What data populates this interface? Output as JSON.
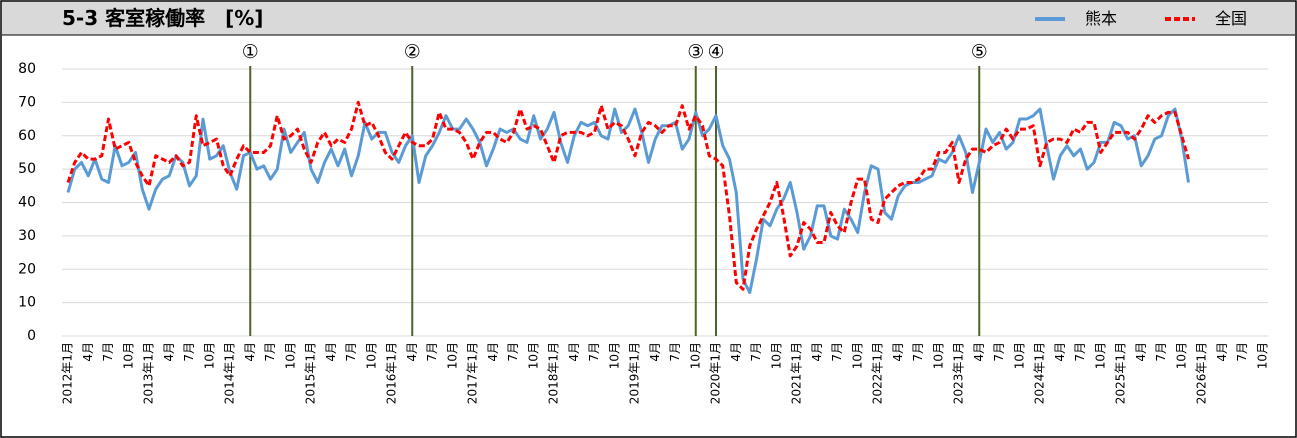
{
  "chart_data": {
    "type": "line",
    "title": "5-3 客室稼働率　[%]",
    "categories": [
      "2012年1月",
      null,
      null,
      "4月",
      null,
      null,
      "7月",
      null,
      null,
      "10月",
      null,
      null,
      "2013年1月",
      null,
      null,
      "4月",
      null,
      null,
      "7月",
      null,
      null,
      "10月",
      null,
      null,
      "2014年1月",
      null,
      null,
      "4月",
      null,
      null,
      "7月",
      null,
      null,
      "10月",
      null,
      null,
      "2015年1月",
      null,
      null,
      "4月",
      null,
      null,
      "7月",
      null,
      null,
      "10月",
      null,
      null,
      "2016年1月",
      null,
      null,
      "4月",
      null,
      null,
      "7月",
      null,
      null,
      "10月",
      null,
      null,
      "2017年1月",
      null,
      null,
      "4月",
      null,
      null,
      "7月",
      null,
      null,
      "10月",
      null,
      null,
      "2018年1月",
      null,
      null,
      "4月",
      null,
      null,
      "7月",
      null,
      null,
      "10月",
      null,
      null,
      "2019年1月",
      null,
      null,
      "4月",
      null,
      null,
      "7月",
      null,
      null,
      "10月",
      null,
      null,
      "2020年1月",
      null,
      null,
      "4月",
      null,
      null,
      "7月",
      null,
      null,
      "10月",
      null,
      null,
      "2021年1月",
      null,
      null,
      "4月",
      null,
      null,
      "7月",
      null,
      null,
      "10月",
      null,
      null,
      "2022年1月",
      null,
      null,
      "4月",
      null,
      null,
      "7月",
      null,
      null,
      "10月",
      null,
      null,
      "2023年1月",
      null,
      null,
      "4月",
      null,
      null,
      "7月",
      null,
      null,
      "10月",
      null,
      null,
      "2024年1月",
      null,
      null,
      "4月",
      null,
      null,
      "7月",
      null,
      null,
      "10月",
      null,
      null,
      "2025年1月",
      null,
      null,
      "4月",
      null,
      null,
      "7月",
      null,
      null,
      "10月",
      null,
      null,
      "2026年1月",
      null,
      null,
      "4月",
      null,
      null,
      "7月",
      null,
      null,
      "10月",
      null,
      null
    ],
    "series": [
      {
        "name": "熊本",
        "color": "#5b9bd5",
        "dash": false,
        "values": [
          43,
          50,
          52,
          48,
          53,
          47,
          46,
          57,
          51,
          52,
          55,
          44,
          38,
          44,
          47,
          48,
          54,
          52,
          45,
          48,
          65,
          53,
          54,
          57,
          49,
          44,
          54,
          55,
          50,
          51,
          47,
          50,
          62,
          55,
          58,
          61,
          50,
          46,
          52,
          56,
          51,
          56,
          48,
          54,
          64,
          59,
          61,
          61,
          55,
          52,
          57,
          60,
          46,
          54,
          57,
          61,
          66,
          62,
          62,
          65,
          62,
          58,
          51,
          56,
          62,
          61,
          62,
          59,
          58,
          66,
          59,
          62,
          67,
          58,
          52,
          60,
          64,
          63,
          64,
          60,
          59,
          68,
          61,
          63,
          68,
          61,
          52,
          59,
          63,
          63,
          64,
          56,
          59,
          67,
          60,
          62,
          66,
          57,
          53,
          43,
          17,
          13,
          23,
          35,
          33,
          38,
          41,
          46,
          37,
          26,
          30,
          39,
          39,
          30,
          29,
          38,
          35,
          31,
          43,
          51,
          50,
          37,
          35,
          42,
          45,
          46,
          46,
          47,
          48,
          53,
          52,
          55,
          60,
          55,
          43,
          52,
          62,
          58,
          61,
          56,
          58,
          65,
          65,
          66,
          68,
          57,
          47,
          54,
          57,
          54,
          56,
          50,
          52,
          58,
          58,
          64,
          63,
          59,
          60,
          51,
          54,
          59,
          60,
          66,
          68,
          59,
          46,
          null,
          null,
          null,
          null,
          null,
          null,
          null,
          null,
          null,
          null,
          null,
          null,
          null
        ]
      },
      {
        "name": "全国",
        "color": "#ff0000",
        "dash": true,
        "values": [
          46,
          52,
          55,
          53,
          53,
          54,
          65,
          56,
          57,
          58,
          52,
          48,
          45,
          54,
          53,
          52,
          54,
          51,
          52,
          66,
          57,
          58,
          59,
          51,
          48,
          53,
          57,
          55,
          55,
          55,
          57,
          66,
          59,
          60,
          62,
          56,
          52,
          58,
          61,
          57,
          59,
          58,
          62,
          70,
          63,
          64,
          60,
          55,
          53,
          57,
          61,
          58,
          57,
          57,
          59,
          67,
          62,
          62,
          61,
          58,
          53,
          58,
          61,
          61,
          59,
          58,
          61,
          68,
          62,
          63,
          62,
          57,
          52,
          60,
          61,
          61,
          61,
          60,
          61,
          69,
          62,
          64,
          63,
          59,
          54,
          61,
          64,
          63,
          61,
          63,
          63,
          69,
          62,
          66,
          63,
          54,
          53,
          51,
          36,
          16,
          14,
          27,
          32,
          36,
          40,
          46,
          36,
          24,
          27,
          34,
          32,
          28,
          28,
          37,
          33,
          31,
          40,
          47,
          47,
          35,
          34,
          41,
          43,
          45,
          46,
          46,
          47,
          50,
          50,
          55,
          55,
          58,
          46,
          53,
          56,
          56,
          55,
          57,
          58,
          62,
          59,
          62,
          62,
          63,
          51,
          58,
          59,
          59,
          58,
          62,
          61,
          64,
          64,
          55,
          58,
          61,
          61,
          61,
          59,
          62,
          66,
          64,
          66,
          67,
          67,
          60,
          53,
          null,
          null,
          null,
          null,
          null,
          null,
          null,
          null,
          null,
          null,
          null,
          null,
          null
        ]
      }
    ],
    "events": [
      {
        "label": "①",
        "index": 27
      },
      {
        "label": "②",
        "index": 51
      },
      {
        "label": "③",
        "index": 93
      },
      {
        "label": "④",
        "index": 96
      },
      {
        "label": "⑤",
        "index": 135
      }
    ],
    "ylim": [
      0,
      80
    ],
    "yticks": [
      0,
      10,
      20,
      30,
      40,
      50,
      60,
      70,
      80
    ],
    "grid": true,
    "legend": "top-right"
  }
}
